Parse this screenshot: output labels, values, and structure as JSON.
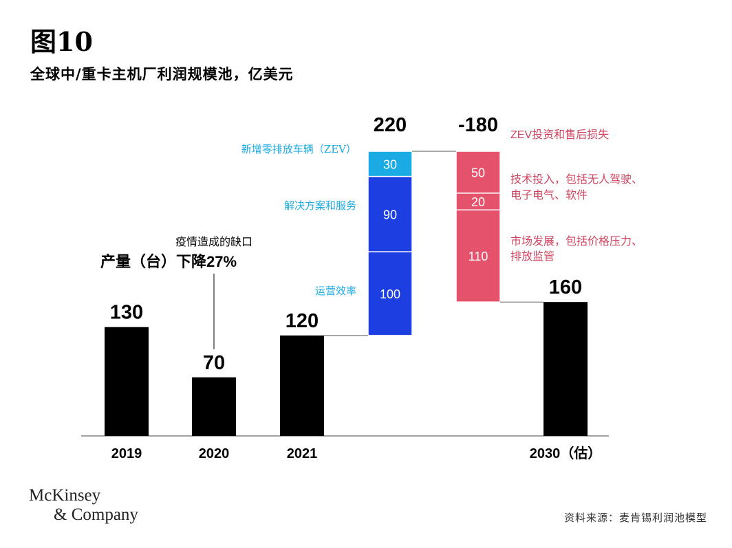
{
  "figure_label": "图10",
  "subtitle": "全球中/重卡主机厂利润规模池，亿美元",
  "logo": {
    "line1": "McKinsey",
    "line2": "& Company"
  },
  "source": "资料来源：麦肯锡利润池模型",
  "annotation": {
    "line1": "疫情造成的缺口",
    "line2": "产量（台）下降27%"
  },
  "colors": {
    "baseline_bar": "#000000",
    "zev_segment": "#1aabe4",
    "solutions_segment": "#1d3ee0",
    "efficiency_segment": "#1d3ee0",
    "negative_segment": "#e5526c",
    "positive_label": "#1aabe4",
    "negative_label": "#d2455f"
  },
  "chart_data": {
    "type": "waterfall",
    "title": "全球中/重卡主机厂利润规模池，亿美元",
    "x_categories": [
      "2019",
      "2020",
      "2021",
      "",
      "",
      "2030（估）"
    ],
    "base_bars": [
      {
        "category": "2019",
        "value": 130
      },
      {
        "category": "2020",
        "value": 70
      },
      {
        "category": "2021",
        "value": 120
      },
      {
        "category": "2030（估）",
        "value": 160
      }
    ],
    "increase": {
      "total_label": "220",
      "from": 120,
      "to": 340,
      "segments": [
        {
          "label": "运营效率",
          "value": 100
        },
        {
          "label": "解决方案和服务",
          "value": 90
        },
        {
          "label": "新增零排放车辆（ZEV）",
          "value": 30
        }
      ]
    },
    "decrease": {
      "total_label": "-180",
      "from": 340,
      "to": 160,
      "segments": [
        {
          "label": "ZEV投资和售后损失",
          "value": 50
        },
        {
          "label_lines": [
            "技术投入，包括无人驾驶、",
            "电子电气、软件"
          ],
          "value": 20
        },
        {
          "label_lines": [
            "市场发展，包括价格压力、",
            "排放监管"
          ],
          "value": 110
        }
      ]
    }
  }
}
